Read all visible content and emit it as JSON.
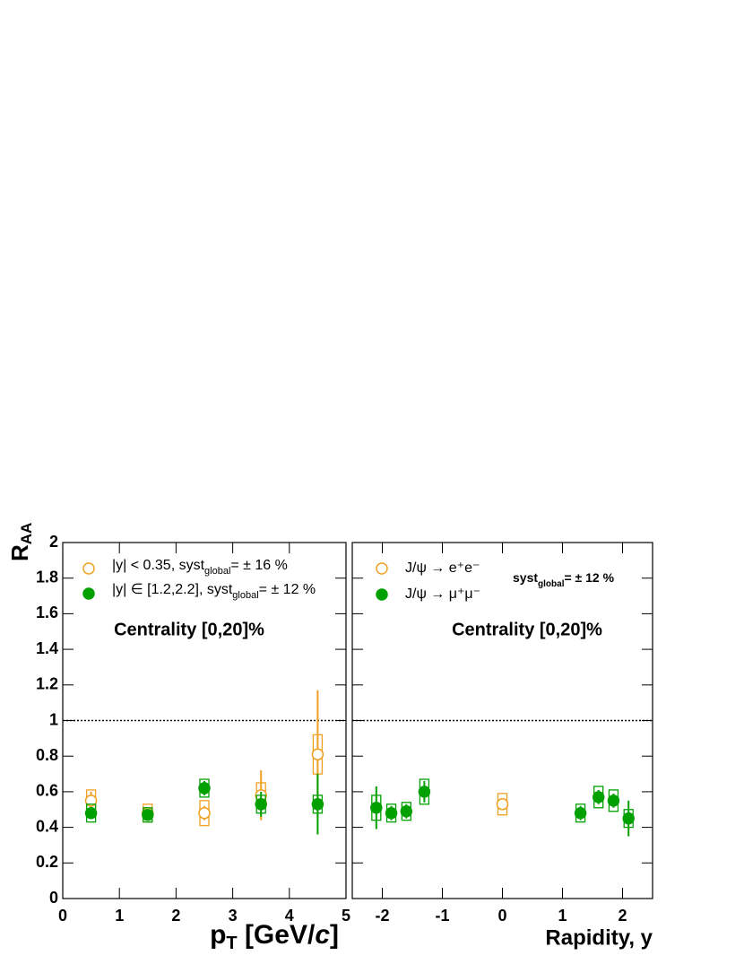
{
  "chart_data": [
    {
      "type": "scatter",
      "y_label": [
        "R",
        "AA"
      ],
      "x_label": [
        "p",
        "T",
        " [GeV/",
        "c",
        "]"
      ],
      "annotation": "Centrality [0,20]%",
      "xlim": [
        0,
        5
      ],
      "ylim": [
        0,
        2
      ],
      "xticks": [
        0,
        1,
        2,
        3,
        4,
        5
      ],
      "yticks": [
        0,
        0.2,
        0.4,
        0.6,
        0.8,
        1,
        1.2,
        1.4,
        1.6,
        1.8,
        2
      ],
      "ytick_labels": true,
      "reference_line": 1,
      "series": [
        {
          "name": [
            "|y| < 0.35, syst",
            "global",
            "= ± 16 %"
          ],
          "color": "#f0a020",
          "marker": "open",
          "x": [
            0.5,
            1.5,
            2.5,
            3.5,
            4.5
          ],
          "values": [
            0.55,
            0.48,
            0.48,
            0.58,
            0.81
          ],
          "errors": [
            0.05,
            0.03,
            0.04,
            0.14,
            0.36
          ],
          "syst": [
            0.06,
            0.05,
            0.07,
            0.07,
            0.11
          ]
        },
        {
          "name": [
            "|y| ∈ [1.2,2.2], syst",
            "global",
            "= ± 12 %"
          ],
          "color": "#00a000",
          "marker": "filled",
          "x": [
            0.5,
            1.5,
            2.5,
            3.5,
            4.5
          ],
          "values": [
            0.48,
            0.47,
            0.62,
            0.53,
            0.53
          ],
          "errors": [
            0.03,
            0.03,
            0.04,
            0.07,
            0.17
          ],
          "syst": [
            0.05,
            0.04,
            0.05,
            0.05,
            0.05
          ]
        }
      ]
    },
    {
      "type": "scatter",
      "x_label": "Rapidity, y",
      "annotation": "Centrality [0,20]%",
      "syst_note": [
        "syst",
        "global",
        "= ± 12 %"
      ],
      "xlim": [
        -2.5,
        2.5
      ],
      "ylim": [
        0,
        2
      ],
      "xticks": [
        -2,
        -1,
        0,
        1,
        2
      ],
      "yticks": [
        0,
        0.2,
        0.4,
        0.6,
        0.8,
        1,
        1.2,
        1.4,
        1.6,
        1.8,
        2
      ],
      "ytick_labels": false,
      "reference_line": 1,
      "series": [
        {
          "name": "J/ψ → e⁺e⁻",
          "color": "#f0a020",
          "marker": "open",
          "x": [
            0
          ],
          "values": [
            0.53
          ],
          "errors": [
            0.03
          ],
          "syst": [
            0.06
          ]
        },
        {
          "name": "J/ψ → μ⁺μ⁻",
          "color": "#00a000",
          "marker": "filled",
          "x": [
            -2.1,
            -1.85,
            -1.6,
            -1.3,
            1.3,
            1.6,
            1.85,
            2.1
          ],
          "values": [
            0.51,
            0.48,
            0.49,
            0.6,
            0.48,
            0.57,
            0.55,
            0.45
          ],
          "errors": [
            0.12,
            0.04,
            0.04,
            0.06,
            0.04,
            0.04,
            0.04,
            0.1
          ],
          "syst": [
            0.07,
            0.05,
            0.05,
            0.07,
            0.05,
            0.06,
            0.06,
            0.05
          ]
        }
      ]
    }
  ]
}
